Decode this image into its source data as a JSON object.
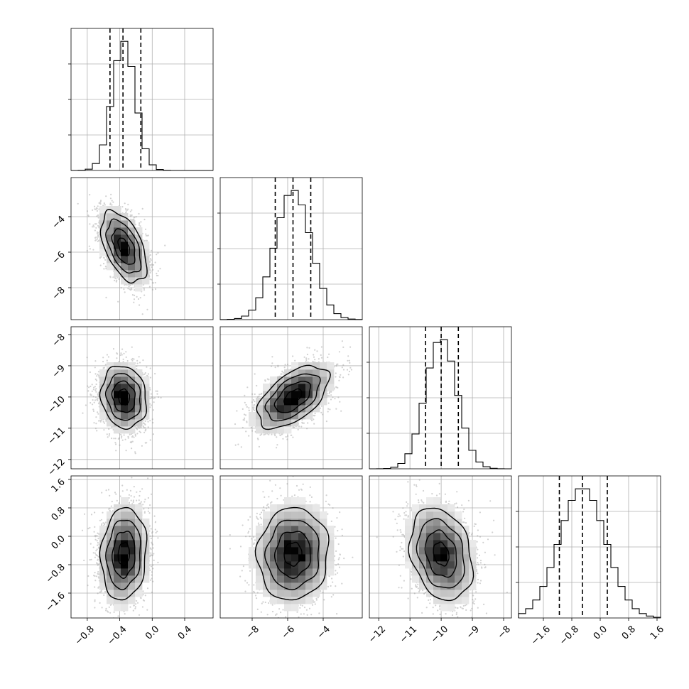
{
  "chart_data": {
    "type": "corner",
    "parameters": 4,
    "grid": true,
    "colors": {
      "line": "#000000",
      "grid": "#b0b0b0",
      "points": "#9a9a9a",
      "density_dark": "#000000"
    },
    "params": [
      {
        "index": 0,
        "mean": -0.35,
        "sd": 0.14,
        "range": [
          -1.0,
          0.75
        ],
        "quantiles": [
          -0.52,
          -0.36,
          -0.14
        ],
        "ticks": [
          -0.8,
          -0.4,
          0.0,
          0.4
        ],
        "tick_labels": [
          "−0.8",
          "−0.4",
          "0.0",
          "0.4"
        ]
      },
      {
        "index": 1,
        "mean": -5.7,
        "sd": 1.0,
        "range": [
          -9.8,
          -1.8
        ],
        "quantiles": [
          -6.7,
          -5.7,
          -4.7
        ],
        "ticks": [
          -8,
          -6,
          -4
        ],
        "tick_labels": [
          "−8",
          "−6",
          "−4"
        ]
      },
      {
        "index": 2,
        "mean": -10.0,
        "sd": 0.5,
        "range": [
          -12.3,
          -7.75
        ],
        "quantiles": [
          -10.5,
          -10.0,
          -9.45
        ],
        "ticks": [
          -12,
          -11,
          -10,
          -9,
          -8
        ],
        "tick_labels": [
          "−12",
          "−11",
          "−10",
          "−9",
          "−8"
        ]
      },
      {
        "index": 3,
        "mean": -0.5,
        "sd": 0.65,
        "range": [
          -2.3,
          1.7
        ],
        "quantiles": [
          -1.15,
          -0.5,
          0.2
        ],
        "ticks": [
          -1.6,
          -0.8,
          0.0,
          0.8,
          1.6
        ],
        "tick_labels": [
          "−1.6",
          "−0.8",
          "0.0",
          "0.8",
          "1.6"
        ]
      }
    ],
    "correlations": [
      {
        "pair": [
          0,
          1
        ],
        "rho": -0.5
      },
      {
        "pair": [
          0,
          2
        ],
        "rho": -0.12
      },
      {
        "pair": [
          1,
          2
        ],
        "rho": 0.55
      },
      {
        "pair": [
          0,
          3
        ],
        "rho": 0.1
      },
      {
        "pair": [
          1,
          3
        ],
        "rho": 0.05
      },
      {
        "pair": [
          2,
          3
        ],
        "rho": -0.25
      }
    ],
    "histogram": {
      "bins": 20
    },
    "scatter": {
      "points_per_panel": 3000
    },
    "contour_levels_sigma": [
      0.5,
      1.0,
      1.5,
      2.0
    ],
    "title": "",
    "xlabel": "",
    "ylabel": ""
  }
}
